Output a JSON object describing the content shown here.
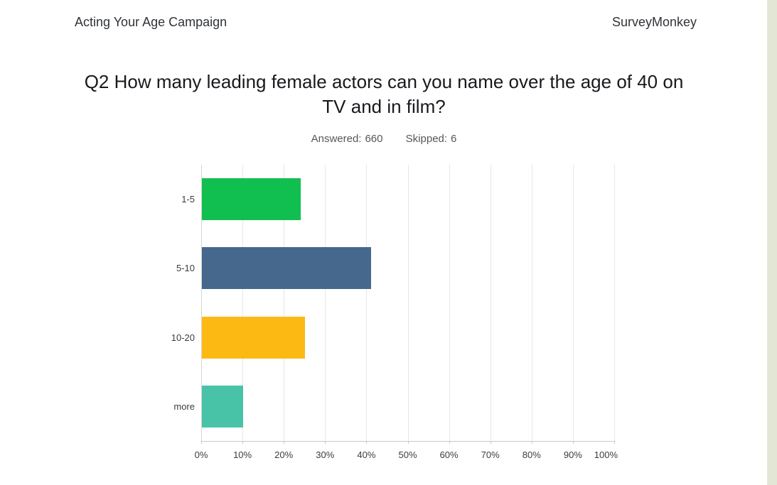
{
  "header": {
    "campaign_title": "Acting Your Age Campaign",
    "brand": "SurveyMonkey"
  },
  "question": {
    "line1": "Q2 How many leading female actors can you name over the age of 40 on",
    "line2": "TV and in film?"
  },
  "stats": {
    "answered_label": "Answered:",
    "answered_value": "660",
    "skipped_label": "Skipped:",
    "skipped_value": "6"
  },
  "chart_data": {
    "type": "bar",
    "orientation": "horizontal",
    "title": "Q2 How many leading female actors can you name over the age of 40 on TV and in film?",
    "answered": 660,
    "skipped": 6,
    "categories": [
      "1-5",
      "5-10",
      "10-20",
      "more"
    ],
    "values": [
      24,
      41,
      25,
      10
    ],
    "unit": "%",
    "bar_colors": [
      "#10bf4f",
      "#45688c",
      "#fdb913",
      "#48c3a7"
    ],
    "x_ticks": [
      "0%",
      "10%",
      "20%",
      "30%",
      "40%",
      "50%",
      "60%",
      "70%",
      "80%",
      "90%",
      "100%"
    ],
    "xlim": [
      0,
      100
    ],
    "grid": true,
    "legend": false
  },
  "colors": {
    "edge_strip": "#e4e6d5",
    "gridline": "#e7e7e2",
    "axis": "#c9c9c3"
  }
}
